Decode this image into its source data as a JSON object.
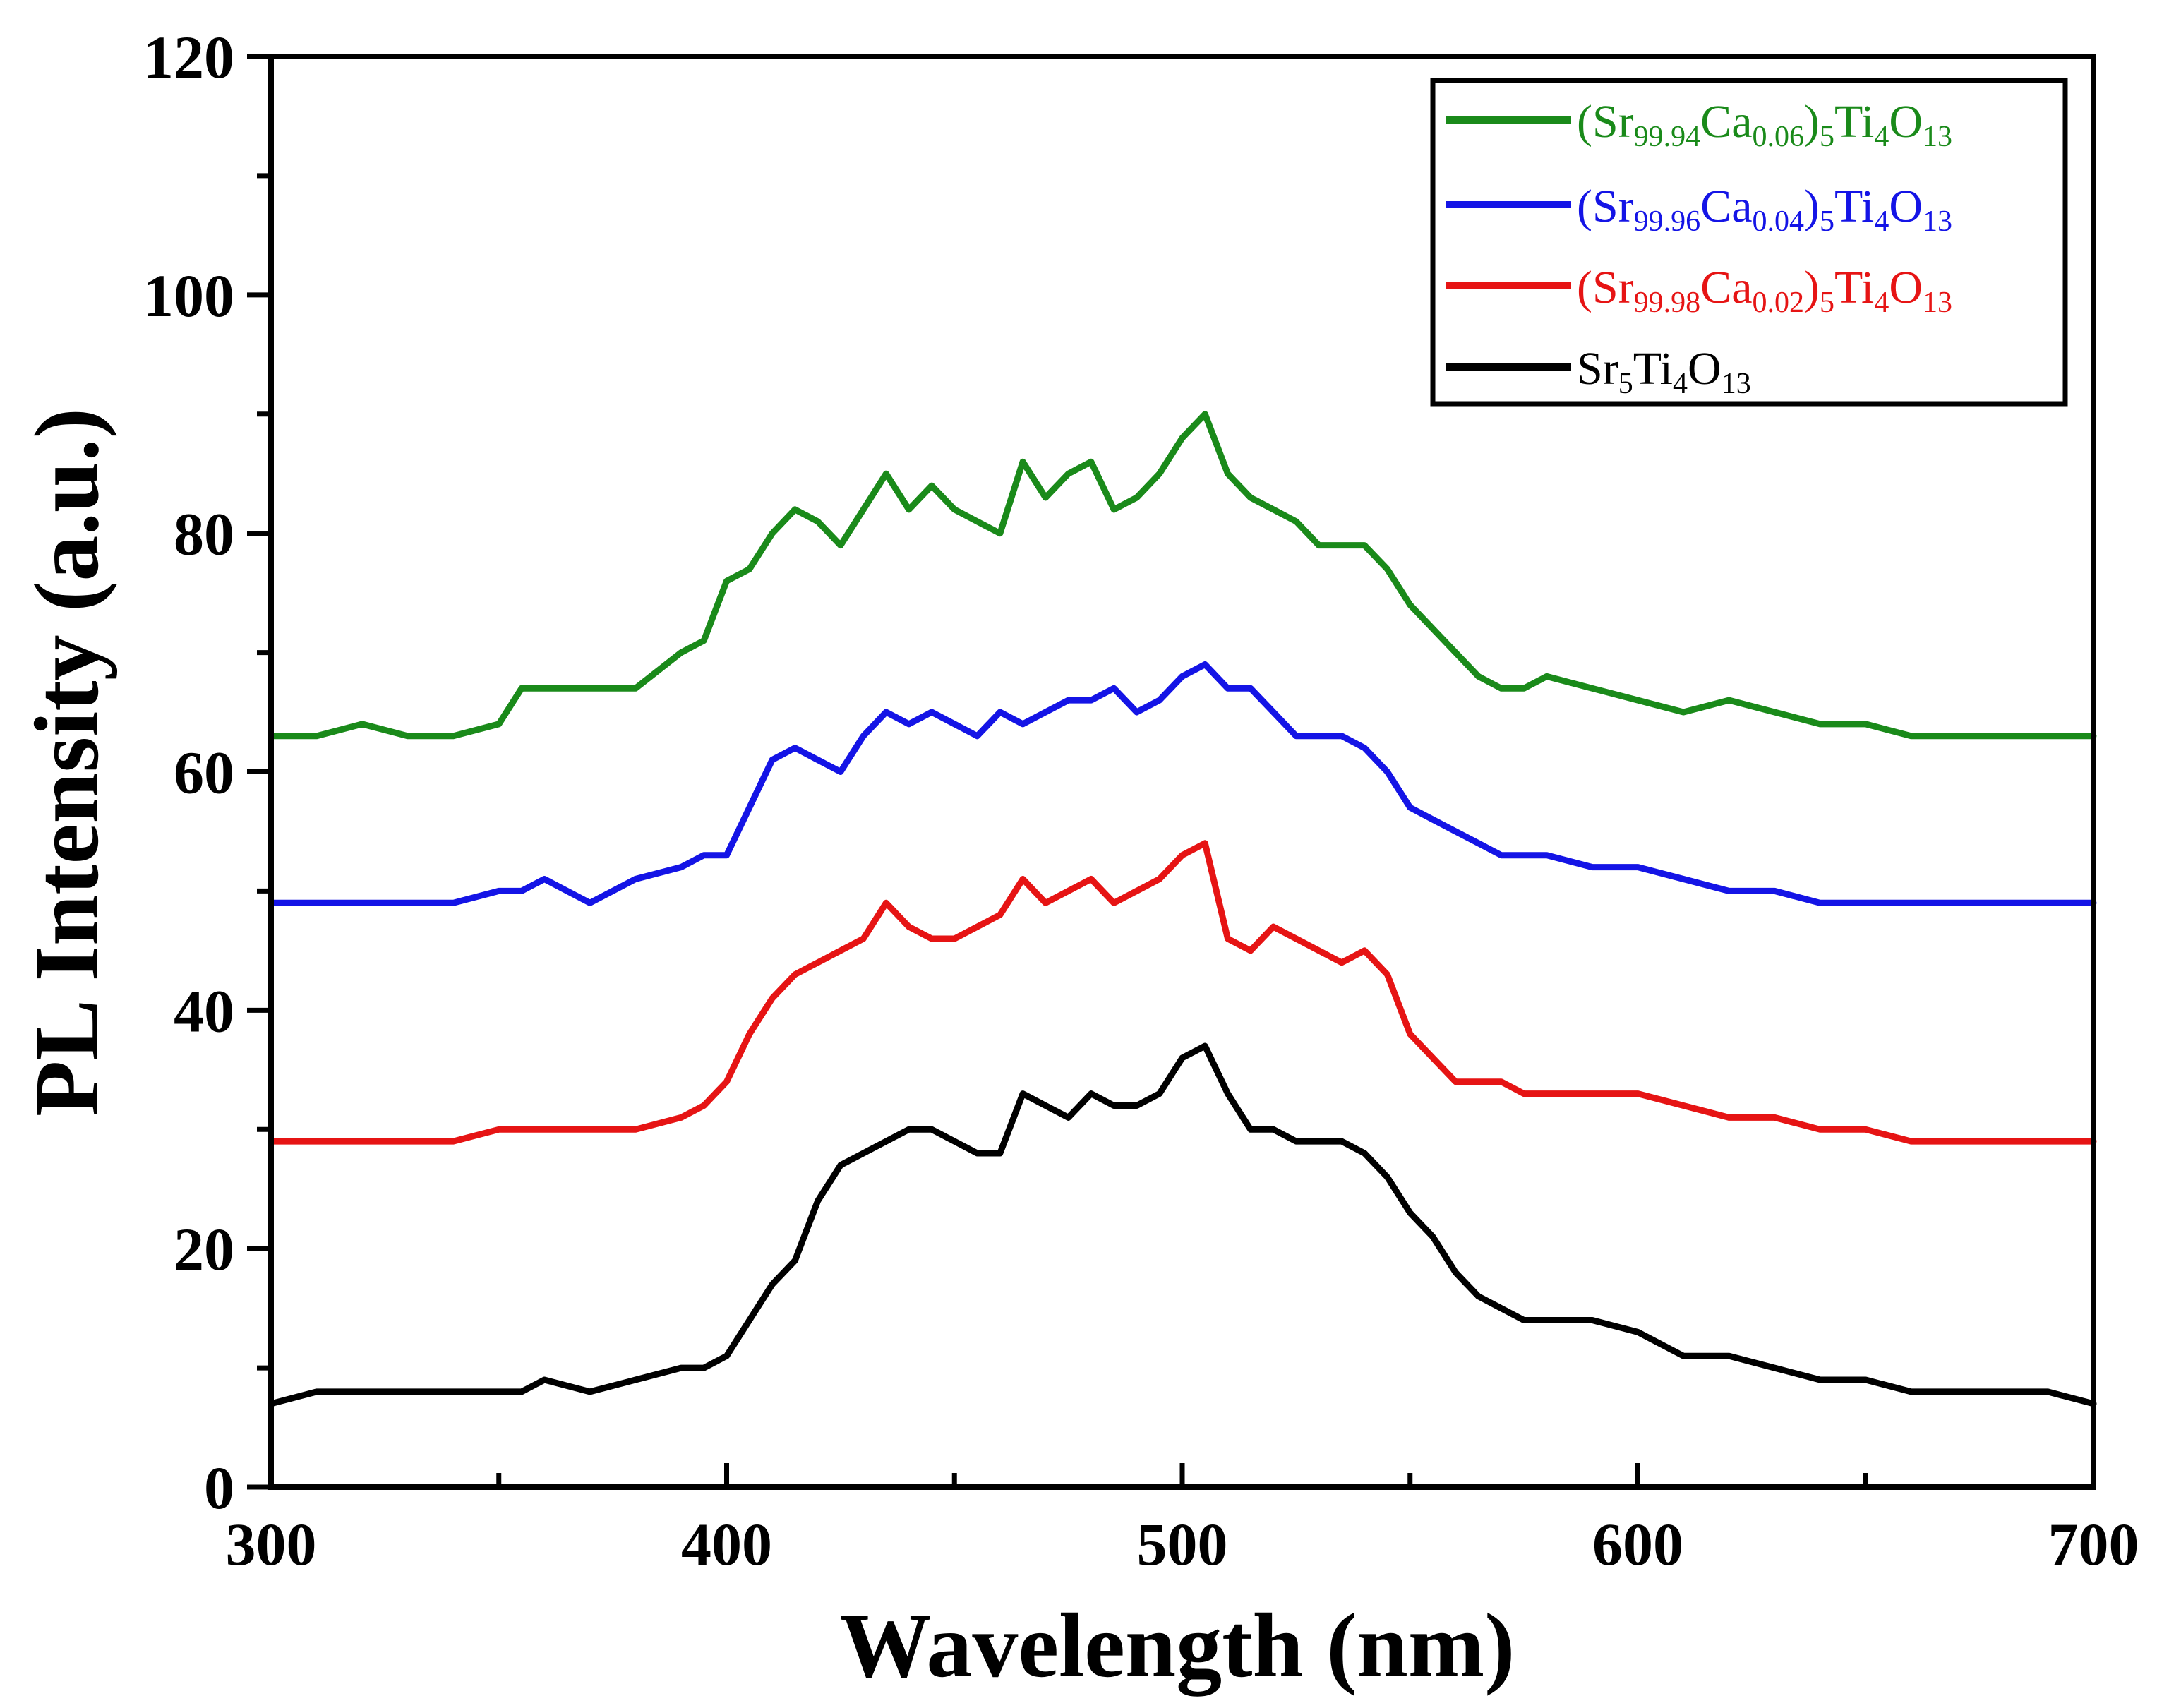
{
  "chart_data": {
    "type": "line",
    "title": "",
    "xlabel": "Wavelength (nm)",
    "ylabel": "PL Intensity (a.u.)",
    "xlim": [
      300,
      700
    ],
    "ylim": [
      0,
      120
    ],
    "xticks": [
      "300",
      "400",
      "500",
      "600",
      "700"
    ],
    "yticks": [
      "0",
      "20",
      "40",
      "60",
      "80",
      "100",
      "120"
    ],
    "grid": false,
    "legend_position": "top-right",
    "x": [
      300,
      310,
      320,
      330,
      340,
      350,
      355,
      360,
      370,
      380,
      390,
      395,
      400,
      405,
      410,
      415,
      420,
      425,
      430,
      435,
      440,
      445,
      450,
      455,
      460,
      465,
      470,
      475,
      480,
      485,
      490,
      495,
      500,
      505,
      510,
      515,
      520,
      525,
      530,
      535,
      540,
      545,
      550,
      555,
      560,
      565,
      570,
      575,
      580,
      590,
      600,
      610,
      620,
      630,
      640,
      650,
      660,
      670,
      680,
      690,
      700
    ],
    "series": [
      {
        "name": "(Sr99.94Ca0.06)5Ti4O13",
        "legend": [
          {
            "t": "(Sr"
          },
          {
            "t": "99.94",
            "sub": true
          },
          {
            "t": "Ca"
          },
          {
            "t": "0.06",
            "sub": true
          },
          {
            "t": ")"
          },
          {
            "t": "5",
            "sub": true
          },
          {
            "t": "Ti"
          },
          {
            "t": "4",
            "sub": true
          },
          {
            "t": "O"
          },
          {
            "t": "13",
            "sub": true
          }
        ],
        "color": "#1a8a1a",
        "values": [
          63,
          63,
          64,
          63,
          63,
          64,
          67,
          67,
          67,
          67,
          70,
          71,
          76,
          77,
          80,
          82,
          81,
          79,
          82,
          85,
          82,
          84,
          82,
          81,
          80,
          86,
          83,
          85,
          86,
          82,
          83,
          85,
          88,
          90,
          85,
          83,
          82,
          81,
          79,
          79,
          79,
          77,
          74,
          72,
          70,
          68,
          67,
          67,
          68,
          67,
          66,
          65,
          66,
          65,
          64,
          64,
          63,
          63,
          63,
          63,
          63
        ]
      },
      {
        "name": "(Sr99.96Ca0.04)5Ti4O13",
        "legend": [
          {
            "t": "(Sr"
          },
          {
            "t": "99.96",
            "sub": true
          },
          {
            "t": "Ca"
          },
          {
            "t": "0.04",
            "sub": true
          },
          {
            "t": ")"
          },
          {
            "t": "5",
            "sub": true
          },
          {
            "t": "Ti"
          },
          {
            "t": "4",
            "sub": true
          },
          {
            "t": "O"
          },
          {
            "t": "13",
            "sub": true
          }
        ],
        "color": "#1414e6",
        "values": [
          49,
          49,
          49,
          49,
          49,
          50,
          50,
          51,
          49,
          51,
          52,
          53,
          53,
          57,
          61,
          62,
          61,
          60,
          63,
          65,
          64,
          65,
          64,
          63,
          65,
          64,
          65,
          66,
          66,
          67,
          65,
          66,
          68,
          69,
          67,
          67,
          65,
          63,
          63,
          63,
          62,
          60,
          57,
          56,
          55,
          54,
          53,
          53,
          53,
          52,
          52,
          51,
          50,
          50,
          49,
          49,
          49,
          49,
          49,
          49,
          49
        ]
      },
      {
        "name": "(Sr99.98Ca0.02)5Ti4O13",
        "legend": [
          {
            "t": "(Sr"
          },
          {
            "t": "99.98",
            "sub": true
          },
          {
            "t": "Ca"
          },
          {
            "t": "0.02",
            "sub": true
          },
          {
            "t": ")"
          },
          {
            "t": "5",
            "sub": true
          },
          {
            "t": "Ti"
          },
          {
            "t": "4",
            "sub": true
          },
          {
            "t": "O"
          },
          {
            "t": "13",
            "sub": true
          }
        ],
        "color": "#e61414",
        "values": [
          29,
          29,
          29,
          29,
          29,
          30,
          30,
          30,
          30,
          30,
          31,
          32,
          34,
          38,
          41,
          43,
          44,
          45,
          46,
          49,
          47,
          46,
          46,
          47,
          48,
          51,
          49,
          50,
          51,
          49,
          50,
          51,
          53,
          54,
          46,
          45,
          47,
          46,
          45,
          44,
          45,
          43,
          38,
          36,
          34,
          34,
          34,
          33,
          33,
          33,
          33,
          32,
          31,
          31,
          30,
          30,
          29,
          29,
          29,
          29,
          29
        ]
      },
      {
        "name": "Sr5Ti4O13",
        "legend": [
          {
            "t": "Sr"
          },
          {
            "t": "5",
            "sub": true
          },
          {
            "t": "Ti"
          },
          {
            "t": "4",
            "sub": true
          },
          {
            "t": "O"
          },
          {
            "t": "13",
            "sub": true
          }
        ],
        "color": "#000000",
        "values": [
          7,
          8,
          8,
          8,
          8,
          8,
          8,
          9,
          8,
          9,
          10,
          10,
          11,
          14,
          17,
          19,
          24,
          27,
          28,
          29,
          30,
          30,
          29,
          28,
          28,
          33,
          32,
          31,
          33,
          32,
          32,
          33,
          36,
          37,
          33,
          30,
          30,
          29,
          29,
          29,
          28,
          26,
          23,
          21,
          18,
          16,
          15,
          14,
          14,
          14,
          13,
          11,
          11,
          10,
          9,
          9,
          8,
          8,
          8,
          8,
          7
        ]
      }
    ]
  }
}
